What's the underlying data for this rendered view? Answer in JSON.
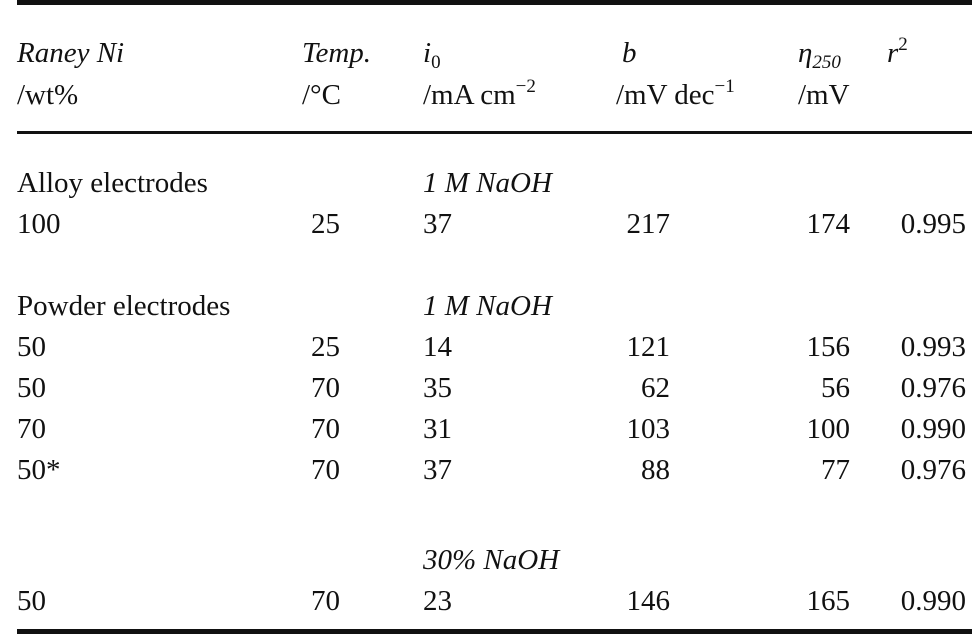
{
  "headers": {
    "col1": {
      "line1": "Raney Ni",
      "line2": "/wt%"
    },
    "col2": {
      "line1": "Temp.",
      "line2": "/°C"
    },
    "col3": {
      "sym": "i",
      "sub": "0",
      "unit": "/mA cm",
      "exp": "−2"
    },
    "col4": {
      "sym": "b",
      "unit": "/mV dec",
      "exp": "−1"
    },
    "col5": {
      "sym": "η",
      "sub": "250",
      "unit": "/mV"
    },
    "col6": {
      "sym": "r",
      "sup": "2"
    }
  },
  "sections": [
    {
      "label": "Alloy electrodes",
      "medium": "1 M NaOH",
      "rows": [
        {
          "raney": "100",
          "temp": "25",
          "i0": "37",
          "b": "217",
          "eta": "174",
          "r2": "0.995"
        }
      ]
    },
    {
      "label": "Powder electrodes",
      "medium": "1 M NaOH",
      "rows": [
        {
          "raney": "50",
          "temp": "25",
          "i0": "14",
          "b": "121",
          "eta": "156",
          "r2": "0.993"
        },
        {
          "raney": "50",
          "temp": "70",
          "i0": "35",
          "b": "62",
          "eta": "56",
          "r2": "0.976"
        },
        {
          "raney": "70",
          "temp": "70",
          "i0": "31",
          "b": "103",
          "eta": "100",
          "r2": "0.990"
        },
        {
          "raney": "50*",
          "temp": "70",
          "i0": "37",
          "b": "88",
          "eta": "77",
          "r2": "0.976"
        }
      ]
    },
    {
      "label": "",
      "medium": "30% NaOH",
      "rows": [
        {
          "raney": "50",
          "temp": "70",
          "i0": "23",
          "b": "146",
          "eta": "165",
          "r2": "0.990"
        }
      ]
    }
  ]
}
